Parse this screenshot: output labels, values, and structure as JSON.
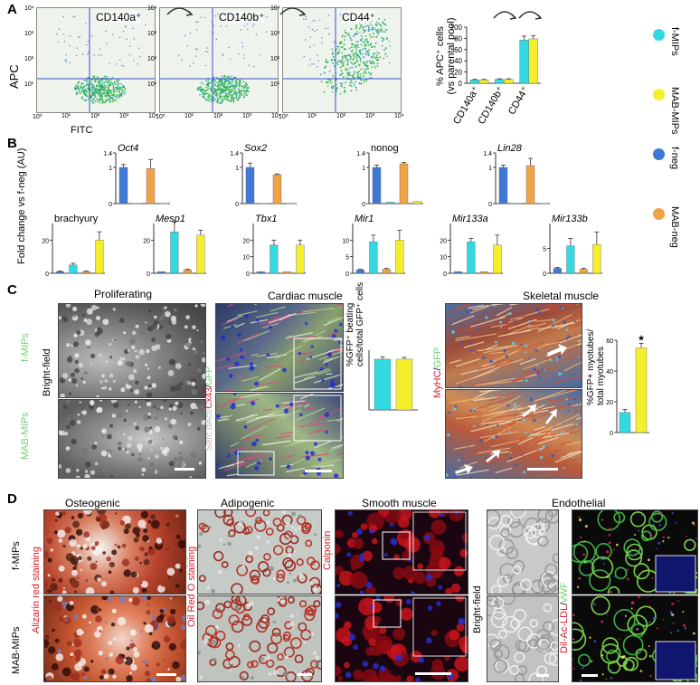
{
  "panels": {
    "A": {
      "letter": "A",
      "flow": [
        {
          "label": "CD140a⁺"
        },
        {
          "label": "CD140b⁺"
        },
        {
          "label": "CD44⁺"
        }
      ],
      "y_axis_label": "APC",
      "x_axis_label": "FITC",
      "ticks": [
        "10⁰",
        "10¹",
        "10²",
        "10³",
        "10⁴"
      ],
      "bar_ylabel_line1": "% APC⁺ cells",
      "bar_ylabel_line2": "(vs parental pool)"
    },
    "B": {
      "letter": "B",
      "ylabel": "Fold change vs f-neg",
      "ylabel2": "(AU)"
    },
    "C": {
      "letter": "C",
      "col_proliferating": "Proliferating",
      "col_cardiac": "Cardiac muscle",
      "col_skeletal": "Skeletal muscle",
      "row_fmips": "f-MIPs",
      "row_mabmips": "MAB-MIPs",
      "brightfield": "Bright-field",
      "stain_sarc": "Sarc αAct/",
      "stain_cx43": "Cx43",
      "stain_slash": "/",
      "stain_gfp": "GFP",
      "stain_myhc": "MyHC",
      "stain_slash2": "/",
      "stain_gfp2": "GFP",
      "beating_label_line1": "%GFP⁺ beating",
      "beating_label_line2": "cells/total GFP⁺ cells",
      "myotube_label_line1": "%GFP+ myotubes/",
      "myotube_label_line2": "total myotubes",
      "star": "★"
    },
    "D": {
      "letter": "D",
      "col_osteogenic": "Osteogenic",
      "col_adipogenic": "Adipogenic",
      "col_smooth": "Smooth muscle",
      "col_endothelial": "Endothelial",
      "row_fmips": "f-MIPs",
      "row_mabmips": "MAB-MIPs",
      "stain_alizarin": "Alizarin red staining",
      "stain_oilred": "Oil Red O staining",
      "stain_calponin": "Calponin",
      "brightfield": "Bright-field",
      "stain_dil": "Dil-Ac-LDL",
      "stain_slash": "/",
      "stain_vwf": "vWF"
    }
  },
  "legend": [
    {
      "name": "f-MIPs",
      "color": "#33d9e0"
    },
    {
      "name": "MAB-MIPs",
      "color": "#f4ef2a"
    },
    {
      "name": "f-neg",
      "color": "#3f78d6"
    },
    {
      "name": "MAB-neg",
      "color": "#f0a247"
    }
  ],
  "chart_data": [
    {
      "type": "bar",
      "id": "A-percent-apc",
      "categories": [
        "CD140a⁺",
        "CD140b⁺",
        "CD44⁺"
      ],
      "yticks": [
        "0",
        "20",
        "40",
        "60",
        "80",
        "100"
      ],
      "ylim": [
        0,
        100
      ],
      "series": [
        {
          "name": "f-MIPs",
          "values": [
            6,
            7,
            77
          ],
          "errors": [
            1,
            1,
            7
          ]
        },
        {
          "name": "MAB-MIPs",
          "values": [
            6,
            7,
            79
          ],
          "errors": [
            1,
            1,
            6
          ]
        }
      ]
    },
    {
      "type": "bar",
      "id": "B-pluripotency",
      "genes": [
        {
          "name": "Oct4",
          "italic": true,
          "ylim": [
            0,
            1.4
          ],
          "yticks": [
            "0",
            "1",
            "1.4"
          ],
          "values": [
            1.0,
            0.01,
            0.97,
            0.01
          ],
          "errors": [
            0.08,
            0,
            0.25,
            0
          ]
        },
        {
          "name": "Sox2",
          "italic": true,
          "ylim": [
            0,
            1.4
          ],
          "yticks": [
            "0",
            "1",
            "1.4"
          ],
          "values": [
            1.0,
            0.01,
            0.8,
            0.01
          ],
          "errors": [
            0.12,
            0,
            0.02,
            0
          ]
        },
        {
          "name": "nonog",
          "italic": false,
          "ylim": [
            0,
            1.4
          ],
          "yticks": [
            "0",
            "1",
            "1.4"
          ],
          "values": [
            1.0,
            0.04,
            1.1,
            0.06
          ],
          "errors": [
            0.06,
            0.01,
            0.04,
            0.01
          ]
        },
        {
          "name": "Lin28",
          "italic": true,
          "ylim": [
            0,
            1.4
          ],
          "yticks": [
            "0",
            "1",
            "1.4"
          ],
          "values": [
            1.0,
            0.01,
            1.05,
            0.01
          ],
          "errors": [
            0.06,
            0,
            0.2,
            0
          ]
        }
      ],
      "bar_order": [
        "f-neg",
        "f-MIPs",
        "MAB-neg",
        "MAB-MIPs"
      ]
    },
    {
      "type": "bar",
      "id": "B-mesoderm",
      "genes": [
        {
          "name": "brachyury",
          "italic": false,
          "ylim": [
            0,
            30
          ],
          "yticks": [
            "0",
            "20"
          ],
          "values": [
            1,
            5,
            1,
            20
          ],
          "errors": [
            0.3,
            1,
            0.3,
            5
          ]
        },
        {
          "name": "Mesp1",
          "italic": true,
          "ylim": [
            0,
            30
          ],
          "yticks": [
            "0",
            "20"
          ],
          "values": [
            1,
            25,
            2,
            23
          ],
          "errors": [
            0.2,
            6,
            0.5,
            3
          ]
        },
        {
          "name": "Tbx1",
          "italic": true,
          "ylim": [
            0,
            30
          ],
          "yticks": [
            "0",
            "10",
            "20"
          ],
          "values": [
            1,
            17,
            1,
            17
          ],
          "errors": [
            0.2,
            3,
            0.2,
            3
          ]
        },
        {
          "name": "Mir1",
          "italic": true,
          "ylim": [
            0,
            15
          ],
          "yticks": [
            "0",
            "5",
            "10"
          ],
          "values": [
            1,
            9.5,
            1.2,
            10
          ],
          "errors": [
            0.2,
            2,
            0.3,
            3
          ]
        },
        {
          "name": "Mir133a",
          "italic": true,
          "ylim": [
            0,
            30
          ],
          "yticks": [
            "0",
            "10",
            "20"
          ],
          "values": [
            1,
            19,
            1,
            17
          ],
          "errors": [
            0.2,
            2,
            0.2,
            6
          ]
        },
        {
          "name": "Mir133b",
          "italic": true,
          "ylim": [
            0,
            10
          ],
          "yticks": [
            "0",
            "5"
          ],
          "values": [
            1,
            5.5,
            0.8,
            5.8
          ],
          "errors": [
            0.2,
            1.5,
            0.2,
            2.5
          ]
        }
      ],
      "bar_order": [
        "f-neg",
        "f-MIPs",
        "MAB-neg",
        "MAB-MIPs"
      ]
    },
    {
      "type": "bar",
      "id": "C-beating",
      "categories": [
        "f-MIPs",
        "MAB-MIPs"
      ],
      "ylim": [
        0,
        100
      ],
      "series": [
        {
          "name": "percent",
          "values": [
            85,
            85
          ],
          "errors": [
            4,
            3
          ]
        }
      ]
    },
    {
      "type": "bar",
      "id": "C-myotubes",
      "categories": [
        "f-MIPs",
        "MAB-MIPs"
      ],
      "yticks": [
        "0",
        "20",
        "40",
        "60"
      ],
      "ylim": [
        0,
        60
      ],
      "series": [
        {
          "name": "percent",
          "values": [
            13,
            55
          ],
          "errors": [
            2,
            3
          ]
        }
      ]
    }
  ]
}
